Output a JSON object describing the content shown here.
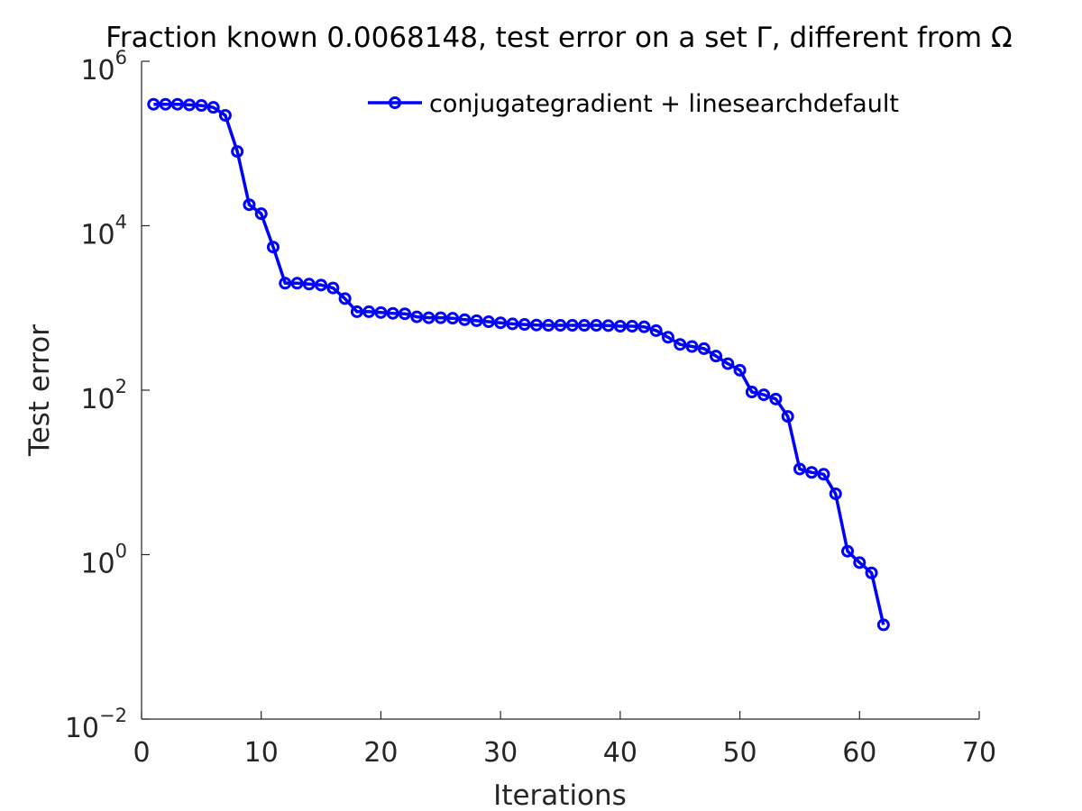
{
  "chart_data": {
    "type": "line",
    "title": "Fraction known 0.0068148, test error on a set  Γ, different from Ω",
    "xlabel": "Iterations",
    "ylabel": "Test error",
    "xlim": [
      0,
      70
    ],
    "ylim": [
      0.01,
      1000000
    ],
    "yscale": "log",
    "xticks": [
      "0",
      "10",
      "20",
      "30",
      "40",
      "50",
      "60",
      "70"
    ],
    "yticks": [
      {
        "base": "10",
        "exp": "6"
      },
      {
        "base": "10",
        "exp": "4"
      },
      {
        "base": "10",
        "exp": "2"
      },
      {
        "base": "10",
        "exp": "0"
      },
      {
        "base": "10",
        "exp": "−2"
      }
    ],
    "grid": false,
    "legend_position": "top-right",
    "series": [
      {
        "name": "conjugategradient + linesearchdefault",
        "color": "#0000ff",
        "marker": "circle",
        "x": [
          1,
          2,
          3,
          4,
          5,
          6,
          7,
          8,
          9,
          10,
          11,
          12,
          13,
          14,
          15,
          16,
          17,
          18,
          19,
          20,
          21,
          22,
          23,
          24,
          25,
          26,
          27,
          28,
          29,
          30,
          31,
          32,
          33,
          34,
          35,
          36,
          37,
          38,
          39,
          40,
          41,
          42,
          43,
          44,
          45,
          46,
          47,
          48,
          49,
          50,
          51,
          52,
          53,
          54,
          55,
          56,
          57,
          58,
          59,
          60,
          61,
          62
        ],
        "y": [
          300000,
          300000,
          300000,
          295000,
          290000,
          275000,
          220000,
          80000,
          18000,
          14000,
          5500,
          2000,
          2000,
          1950,
          1900,
          1750,
          1300,
          900,
          900,
          880,
          860,
          850,
          780,
          760,
          760,
          750,
          720,
          700,
          680,
          660,
          640,
          630,
          620,
          615,
          615,
          615,
          615,
          615,
          610,
          600,
          600,
          590,
          530,
          440,
          360,
          340,
          320,
          260,
          210,
          175,
          95,
          88,
          78,
          48,
          11,
          10,
          9.5,
          5.5,
          1.1,
          0.8,
          0.6,
          0.14
        ]
      }
    ]
  }
}
